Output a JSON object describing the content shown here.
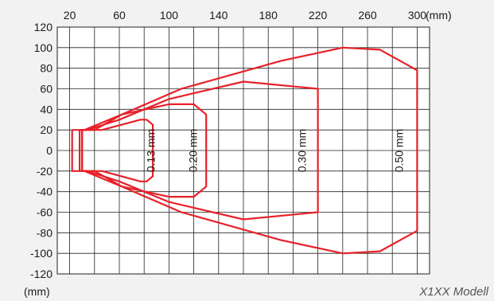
{
  "chart_data": {
    "type": "line",
    "x_unit": "(mm)",
    "y_unit": "(mm)",
    "x_ticks": [
      20,
      60,
      100,
      140,
      180,
      220,
      260,
      300
    ],
    "y_ticks": [
      120,
      100,
      80,
      60,
      40,
      20,
      0,
      -20,
      -40,
      -60,
      -80,
      -100,
      -120
    ],
    "xlim": [
      10,
      310
    ],
    "ylim": [
      -120,
      120
    ],
    "grid": true,
    "line_color": "#e8202a",
    "series": [
      {
        "name": "0.13 mm",
        "label_x": 86,
        "points": [
          [
            30,
            20
          ],
          [
            46,
            20
          ],
          [
            77,
            30
          ],
          [
            82,
            30
          ],
          [
            87,
            25
          ],
          [
            87,
            -25
          ],
          [
            82,
            -30
          ],
          [
            77,
            -30
          ],
          [
            46,
            -20
          ],
          [
            30,
            -20
          ],
          [
            30,
            20
          ]
        ]
      },
      {
        "name": "0.20 mm",
        "label_x": 120,
        "points": [
          [
            30,
            20
          ],
          [
            40,
            20
          ],
          [
            62,
            35
          ],
          [
            100,
            45
          ],
          [
            120,
            45
          ],
          [
            130,
            35
          ],
          [
            130,
            -35
          ],
          [
            120,
            -45
          ],
          [
            100,
            -45
          ],
          [
            62,
            -35
          ],
          [
            40,
            -20
          ],
          [
            30,
            -20
          ],
          [
            30,
            20
          ]
        ]
      },
      {
        "name": "0.30 mm",
        "label_x": 208,
        "points": [
          [
            28,
            20
          ],
          [
            34,
            20
          ],
          [
            60,
            30
          ],
          [
            100,
            50
          ],
          [
            160,
            67
          ],
          [
            220,
            60
          ],
          [
            220,
            -60
          ],
          [
            160,
            -67
          ],
          [
            100,
            -50
          ],
          [
            60,
            -30
          ],
          [
            34,
            -20
          ],
          [
            28,
            -20
          ],
          [
            28,
            20
          ]
        ]
      },
      {
        "name": "0.50 mm",
        "label_x": 286,
        "points": [
          [
            22,
            20
          ],
          [
            32,
            20
          ],
          [
            62,
            35
          ],
          [
            110,
            60
          ],
          [
            190,
            87
          ],
          [
            240,
            100
          ],
          [
            270,
            98
          ],
          [
            300,
            78
          ],
          [
            300,
            -78
          ],
          [
            270,
            -98
          ],
          [
            240,
            -100
          ],
          [
            190,
            -87
          ],
          [
            110,
            -60
          ],
          [
            62,
            -35
          ],
          [
            32,
            -20
          ],
          [
            22,
            -20
          ],
          [
            22,
            20
          ]
        ]
      }
    ]
  },
  "caption": "X1XX Modell"
}
